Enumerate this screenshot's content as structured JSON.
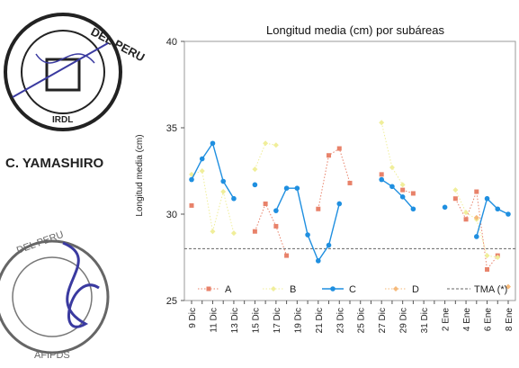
{
  "stamps": {
    "top_stamp_text": "DEL PERU",
    "top_stamp_sub": "IRDL",
    "signature_name": "C. YAMASHIRO",
    "bottom_stamp_text": "DEL PERU",
    "bottom_stamp_sub": "AFIPDS"
  },
  "colors": {
    "A": "#e8826a",
    "B": "#f0ee9a",
    "C": "#1f8fe0",
    "D": "#f5b97a",
    "TMA": "#666666",
    "ink": "#222222",
    "stamp_blue": "#3a3aa0"
  },
  "chart_data": {
    "type": "line",
    "title": "Longitud media (cm) por subáreas",
    "xlabel": "",
    "ylabel": "Longitud media (cm)",
    "ylim": [
      25,
      40
    ],
    "yticks": [
      25,
      30,
      35,
      40
    ],
    "categories": [
      "9 Dic",
      "10 Dic",
      "11 Dic",
      "12 Dic",
      "13 Dic",
      "14 Dic",
      "15 Dic",
      "16 Dic",
      "17 Dic",
      "18 Dic",
      "19 Dic",
      "20 Dic",
      "21 Dic",
      "22 Dic",
      "23 Dic",
      "24 Dic",
      "25 Dic",
      "26 Dic",
      "27 Dic",
      "28 Dic",
      "29 Dic",
      "30 Dic",
      "31 Dic",
      "1 Ene",
      "2 Ene",
      "3 Ene",
      "4 Ene",
      "5 Ene",
      "6 Ene",
      "7 Ene",
      "8 Ene"
    ],
    "tick_labels": [
      "9 Dic",
      "11 Dic",
      "13 Dic",
      "15 Dic",
      "17 Dic",
      "19 Dic",
      "21 Dic",
      "23 Dic",
      "25 Dic",
      "27 Dic",
      "29 Dic",
      "31 Dic",
      "2 Ene",
      "4 Ene",
      "6 Ene",
      "8 Ene"
    ],
    "legend_placement": "bottom",
    "grid": false,
    "series": [
      {
        "name": "A",
        "style": "dotted-square",
        "values": [
          30.5,
          null,
          null,
          null,
          null,
          null,
          29.0,
          30.6,
          29.3,
          27.6,
          null,
          null,
          30.3,
          33.4,
          33.8,
          31.8,
          null,
          null,
          32.3,
          null,
          31.4,
          31.2,
          null,
          null,
          null,
          30.9,
          29.7,
          31.3,
          26.8,
          27.6,
          null
        ]
      },
      {
        "name": "B",
        "style": "dotted-diamond",
        "values": [
          32.3,
          32.5,
          29.0,
          31.3,
          28.9,
          null,
          32.6,
          34.1,
          34.0,
          null,
          null,
          null,
          null,
          null,
          null,
          null,
          null,
          null,
          35.3,
          32.7,
          31.7,
          null,
          null,
          null,
          null,
          31.4,
          30.1,
          29.7,
          27.6,
          27.5,
          null
        ]
      },
      {
        "name": "C",
        "style": "solid-circle",
        "values": [
          32.0,
          33.2,
          34.1,
          31.9,
          30.9,
          null,
          31.7,
          null,
          30.2,
          31.5,
          31.5,
          28.8,
          27.3,
          28.2,
          30.6,
          null,
          null,
          null,
          32.0,
          31.6,
          31.0,
          30.3,
          null,
          null,
          30.4,
          null,
          null,
          28.7,
          30.9,
          30.3,
          30.0
        ]
      },
      {
        "name": "D",
        "style": "dotted-diamond",
        "values": [
          null,
          null,
          null,
          null,
          null,
          null,
          null,
          null,
          null,
          null,
          null,
          null,
          null,
          null,
          null,
          null,
          null,
          null,
          null,
          null,
          null,
          null,
          null,
          null,
          null,
          null,
          null,
          29.8,
          null,
          null,
          25.8
        ]
      }
    ],
    "reference_line": {
      "name": "TMA (*)",
      "value": 28.0
    }
  }
}
